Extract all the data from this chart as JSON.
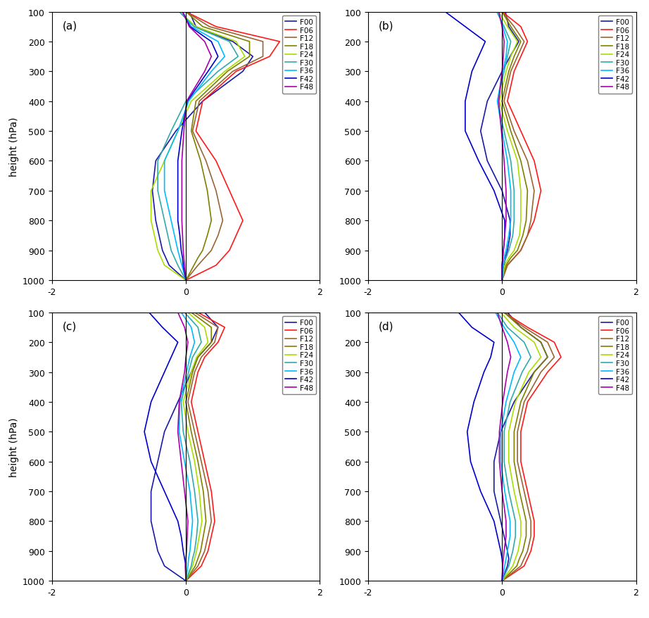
{
  "pressure_levels": [
    100,
    150,
    200,
    250,
    300,
    400,
    500,
    600,
    700,
    800,
    850,
    900,
    925,
    950,
    1000
  ],
  "legend_labels": [
    "F00",
    "F06",
    "F12",
    "F18",
    "F24",
    "F30",
    "F36",
    "F42",
    "F48"
  ],
  "line_colors": {
    "F00": "#1a1aaa",
    "F06": "#ff1a1a",
    "F12": "#996633",
    "F18": "#808000",
    "F24": "#aadd00",
    "F30": "#33aaaa",
    "F36": "#00bbff",
    "F42": "#0000cc",
    "F48": "#aa00aa"
  },
  "panel_labels": [
    "(a)",
    "(b)",
    "(c)",
    "(d)"
  ],
  "xlim": [
    -2,
    2
  ],
  "ylim": [
    1000,
    100
  ],
  "ylabel": "height (hPa)",
  "yticks": [
    100,
    200,
    300,
    400,
    500,
    600,
    700,
    800,
    900,
    1000
  ],
  "xticks": [
    -2,
    0,
    2
  ],
  "profiles_a": {
    "F00": [
      0.05,
      0.15,
      0.7,
      1.0,
      0.85,
      0.25,
      -0.15,
      -0.45,
      -0.5,
      -0.45,
      -0.4,
      -0.35,
      -0.3,
      -0.25,
      0.0
    ],
    "F06": [
      0.0,
      0.45,
      1.4,
      1.25,
      0.75,
      0.25,
      0.15,
      0.45,
      0.65,
      0.85,
      0.75,
      0.65,
      0.55,
      0.45,
      0.0
    ],
    "F12": [
      0.0,
      0.35,
      1.15,
      1.15,
      0.7,
      0.2,
      0.1,
      0.3,
      0.45,
      0.55,
      0.48,
      0.38,
      0.28,
      0.18,
      0.0
    ],
    "F18": [
      0.0,
      0.25,
      0.95,
      0.95,
      0.62,
      0.15,
      0.08,
      0.22,
      0.32,
      0.38,
      0.32,
      0.25,
      0.18,
      0.12,
      0.0
    ],
    "F24": [
      -0.1,
      0.15,
      0.75,
      0.88,
      0.58,
      0.08,
      -0.12,
      -0.32,
      -0.52,
      -0.52,
      -0.47,
      -0.42,
      -0.37,
      -0.32,
      0.0
    ],
    "F30": [
      -0.1,
      0.12,
      0.65,
      0.78,
      0.48,
      0.0,
      -0.22,
      -0.42,
      -0.42,
      -0.32,
      -0.27,
      -0.22,
      -0.17,
      -0.12,
      0.0
    ],
    "F36": [
      -0.05,
      0.08,
      0.48,
      0.58,
      0.38,
      0.04,
      -0.12,
      -0.32,
      -0.32,
      -0.22,
      -0.17,
      -0.12,
      -0.09,
      -0.06,
      0.0
    ],
    "F42": [
      -0.05,
      0.06,
      0.38,
      0.48,
      0.33,
      0.02,
      -0.06,
      -0.12,
      -0.12,
      -0.12,
      -0.09,
      -0.07,
      -0.05,
      -0.04,
      0.0
    ],
    "F48": [
      -0.05,
      0.05,
      0.28,
      0.38,
      0.28,
      0.01,
      -0.03,
      -0.06,
      -0.06,
      -0.06,
      -0.05,
      -0.04,
      -0.03,
      -0.02,
      0.0
    ]
  },
  "profiles_b": {
    "F00": [
      0.05,
      0.1,
      0.25,
      0.12,
      0.0,
      -0.22,
      -0.32,
      -0.22,
      0.0,
      0.12,
      0.12,
      0.08,
      0.05,
      0.03,
      0.0
    ],
    "F06": [
      0.0,
      0.28,
      0.38,
      0.28,
      0.18,
      0.08,
      0.28,
      0.48,
      0.58,
      0.48,
      0.38,
      0.28,
      0.18,
      0.08,
      0.0
    ],
    "F12": [
      0.0,
      0.18,
      0.33,
      0.23,
      0.13,
      0.03,
      0.18,
      0.38,
      0.48,
      0.43,
      0.38,
      0.28,
      0.18,
      0.08,
      0.0
    ],
    "F18": [
      0.0,
      0.13,
      0.28,
      0.18,
      0.1,
      0.0,
      0.13,
      0.28,
      0.38,
      0.36,
      0.31,
      0.23,
      0.13,
      0.06,
      0.0
    ],
    "F24": [
      -0.05,
      0.08,
      0.23,
      0.13,
      0.06,
      -0.04,
      0.08,
      0.23,
      0.28,
      0.28,
      0.26,
      0.18,
      0.1,
      0.04,
      0.0
    ],
    "F30": [
      -0.08,
      0.03,
      0.13,
      0.08,
      0.03,
      -0.07,
      0.03,
      0.13,
      0.18,
      0.18,
      0.16,
      0.1,
      0.06,
      0.02,
      0.0
    ],
    "F36": [
      -0.05,
      0.01,
      0.08,
      0.06,
      0.01,
      -0.07,
      0.0,
      0.08,
      0.13,
      0.13,
      0.1,
      0.06,
      0.03,
      0.01,
      0.0
    ],
    "F42": [
      -0.85,
      -0.55,
      -0.25,
      -0.35,
      -0.45,
      -0.55,
      -0.55,
      -0.35,
      -0.12,
      0.04,
      0.04,
      0.02,
      0.01,
      0.0,
      0.0
    ],
    "F48": [
      -0.05,
      0.0,
      0.03,
      0.02,
      0.0,
      -0.05,
      -0.01,
      0.03,
      0.06,
      0.06,
      0.04,
      0.02,
      0.01,
      0.0,
      0.0
    ]
  },
  "profiles_c": {
    "F00": [
      0.28,
      0.48,
      0.38,
      0.18,
      0.08,
      -0.12,
      -0.32,
      -0.42,
      -0.52,
      -0.52,
      -0.47,
      -0.42,
      -0.37,
      -0.32,
      0.0
    ],
    "F06": [
      0.18,
      0.58,
      0.48,
      0.28,
      0.18,
      0.08,
      0.18,
      0.28,
      0.38,
      0.43,
      0.38,
      0.33,
      0.28,
      0.23,
      0.0
    ],
    "F12": [
      0.13,
      0.48,
      0.43,
      0.23,
      0.13,
      0.03,
      0.13,
      0.23,
      0.33,
      0.38,
      0.33,
      0.28,
      0.23,
      0.18,
      0.0
    ],
    "F18": [
      0.08,
      0.38,
      0.38,
      0.18,
      0.1,
      0.0,
      0.08,
      0.18,
      0.26,
      0.3,
      0.26,
      0.22,
      0.18,
      0.14,
      0.0
    ],
    "F24": [
      0.03,
      0.28,
      0.33,
      0.16,
      0.08,
      -0.04,
      0.03,
      0.13,
      0.2,
      0.24,
      0.2,
      0.16,
      0.13,
      0.1,
      0.0
    ],
    "F30": [
      -0.02,
      0.18,
      0.23,
      0.1,
      0.04,
      -0.07,
      -0.04,
      0.06,
      0.13,
      0.18,
      0.16,
      0.13,
      0.1,
      0.08,
      0.0
    ],
    "F36": [
      -0.07,
      0.08,
      0.13,
      0.06,
      0.01,
      -0.09,
      -0.1,
      -0.02,
      0.06,
      0.1,
      0.08,
      0.06,
      0.04,
      0.03,
      0.0
    ],
    "F42": [
      -0.55,
      -0.35,
      -0.12,
      -0.22,
      -0.32,
      -0.52,
      -0.62,
      -0.52,
      -0.32,
      -0.12,
      -0.07,
      -0.04,
      -0.02,
      0.0,
      0.0
    ],
    "F48": [
      -0.12,
      -0.02,
      0.03,
      0.0,
      -0.02,
      -0.1,
      -0.12,
      -0.07,
      -0.02,
      0.03,
      0.02,
      0.01,
      0.0,
      -0.01,
      0.0
    ]
  },
  "profiles_d": {
    "F00": [
      0.08,
      0.28,
      0.58,
      0.68,
      0.48,
      0.18,
      -0.02,
      -0.12,
      -0.12,
      -0.02,
      0.03,
      0.08,
      0.1,
      0.08,
      0.0
    ],
    "F06": [
      0.03,
      0.38,
      0.78,
      0.88,
      0.68,
      0.38,
      0.28,
      0.28,
      0.38,
      0.48,
      0.48,
      0.43,
      0.38,
      0.33,
      0.0
    ],
    "F12": [
      0.03,
      0.33,
      0.68,
      0.78,
      0.58,
      0.33,
      0.23,
      0.23,
      0.33,
      0.43,
      0.43,
      0.38,
      0.33,
      0.28,
      0.0
    ],
    "F18": [
      0.03,
      0.28,
      0.58,
      0.68,
      0.48,
      0.28,
      0.18,
      0.18,
      0.26,
      0.36,
      0.36,
      0.31,
      0.26,
      0.22,
      0.0
    ],
    "F24": [
      -0.02,
      0.18,
      0.48,
      0.58,
      0.4,
      0.2,
      0.1,
      0.1,
      0.18,
      0.28,
      0.28,
      0.24,
      0.2,
      0.16,
      0.0
    ],
    "F30": [
      -0.07,
      0.08,
      0.33,
      0.43,
      0.3,
      0.12,
      0.03,
      0.03,
      0.1,
      0.2,
      0.2,
      0.16,
      0.13,
      0.1,
      0.0
    ],
    "F36": [
      -0.1,
      0.03,
      0.18,
      0.28,
      0.18,
      0.06,
      -0.02,
      -0.02,
      0.04,
      0.12,
      0.12,
      0.08,
      0.06,
      0.04,
      0.0
    ],
    "F42": [
      -0.65,
      -0.45,
      -0.12,
      -0.17,
      -0.27,
      -0.42,
      -0.52,
      -0.47,
      -0.32,
      -0.12,
      -0.07,
      -0.02,
      0.0,
      0.01,
      0.0
    ],
    "F48": [
      -0.07,
      0.0,
      0.08,
      0.13,
      0.08,
      0.01,
      -0.04,
      -0.04,
      0.0,
      0.06,
      0.06,
      0.03,
      0.02,
      0.01,
      0.0
    ]
  }
}
